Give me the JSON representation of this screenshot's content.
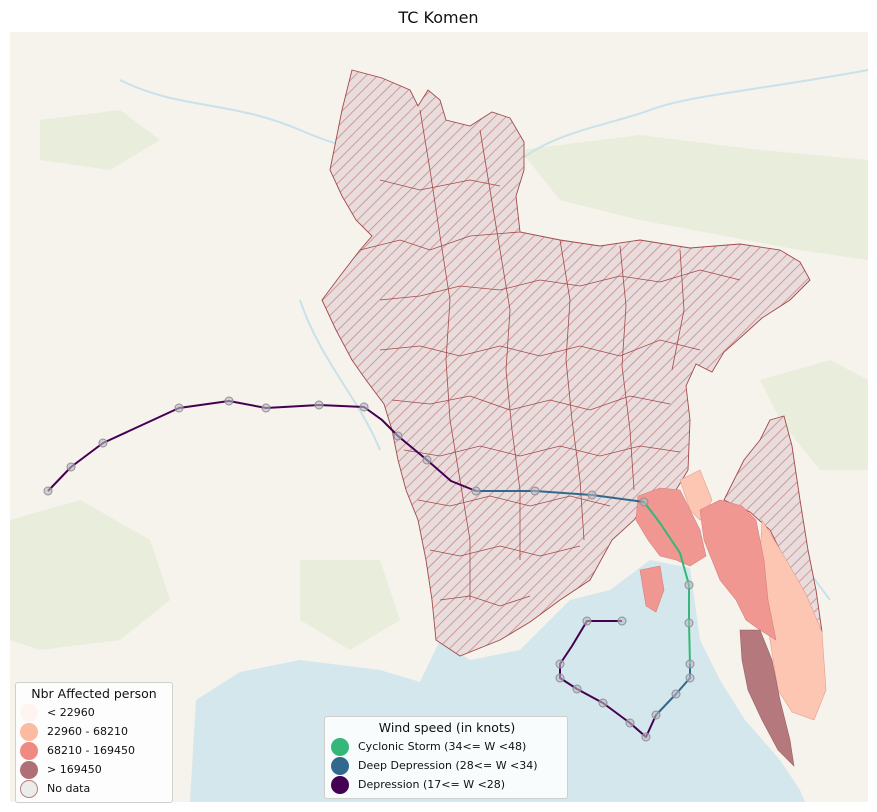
{
  "title": "TC Komen",
  "legend_affected": {
    "title": "Nbr Affected person",
    "items": [
      {
        "label": "< 22960",
        "color": "#fff5f0"
      },
      {
        "label": "22960 - 68210",
        "color": "#fcbba1"
      },
      {
        "label": "68210 - 169450",
        "color": "#ef8a82"
      },
      {
        "label": "> 169450",
        "color": "#ae7076"
      },
      {
        "label": "No data",
        "color": "#ececec"
      }
    ]
  },
  "legend_wind": {
    "title": "Wind speed (in knots)",
    "items": [
      {
        "label": "Cyclonic Storm (34<= W <48)",
        "color": "#35b779"
      },
      {
        "label": "Deep Depression (28<= W <34)",
        "color": "#31688e"
      },
      {
        "label": "Depression (17<= W <28)",
        "color": "#440154"
      }
    ]
  }
}
